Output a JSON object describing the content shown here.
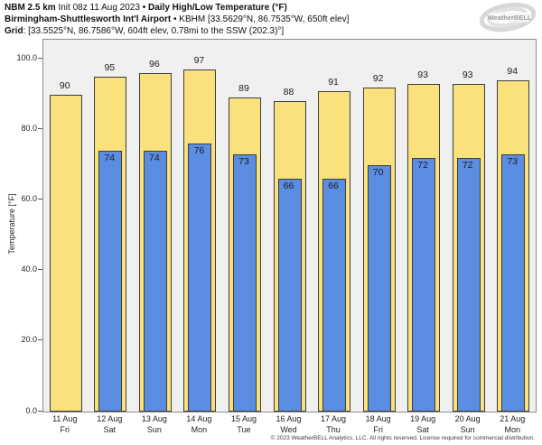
{
  "header": {
    "l1": [
      "NBM 2.5 km",
      " Init 08z 11 Aug 2023 ",
      "• Daily High/Low Temperature (°F)"
    ],
    "l2": [
      "Birmingham-Shuttlesworth Int'l Airport",
      " • KBHM [33.5629°N, 86.7535°W, 650ft elev]"
    ],
    "l3": [
      "Grid",
      ": [33.5525°N, 86.7586°W, 604ft elev, 0.78mi to the SSW (202.3)°]"
    ]
  },
  "logo": {
    "brand": "WeatherBELL"
  },
  "chart_data": {
    "type": "bar",
    "title": "NBM 2.5 km Init 08z 11 Aug 2023 • Daily High/Low Temperature (°F)",
    "subtitle": "Birmingham-Shuttlesworth Int'l Airport • KBHM",
    "categories": [
      {
        "date": "11 Aug",
        "day": "Fri"
      },
      {
        "date": "12 Aug",
        "day": "Sat"
      },
      {
        "date": "13 Aug",
        "day": "Sun"
      },
      {
        "date": "14 Aug",
        "day": "Mon"
      },
      {
        "date": "15 Aug",
        "day": "Tue"
      },
      {
        "date": "16 Aug",
        "day": "Wed"
      },
      {
        "date": "17 Aug",
        "day": "Thu"
      },
      {
        "date": "18 Aug",
        "day": "Fri"
      },
      {
        "date": "19 Aug",
        "day": "Sat"
      },
      {
        "date": "20 Aug",
        "day": "Sun"
      },
      {
        "date": "21 Aug",
        "day": "Mon"
      }
    ],
    "series": [
      {
        "name": "Daily High",
        "color": "#FAE17C",
        "values": [
          90,
          95,
          96,
          97,
          89,
          88,
          91,
          92,
          93,
          93,
          94
        ]
      },
      {
        "name": "Daily Low",
        "color": "#5B8DE2",
        "values": [
          null,
          74,
          74,
          76,
          73,
          66,
          66,
          70,
          72,
          72,
          73
        ]
      }
    ],
    "ylabel": "Temperature [°F]",
    "yticks": [
      {
        "v": 0,
        "label": "0.0"
      },
      {
        "v": 20,
        "label": "20.0"
      },
      {
        "v": 40,
        "label": "40.0"
      },
      {
        "v": 60,
        "label": "60.0"
      },
      {
        "v": 80,
        "label": "80.0"
      },
      {
        "v": 100,
        "label": "100.0"
      }
    ],
    "ylim": [
      0,
      105.5
    ],
    "grid": false,
    "legend": "none",
    "plot_bg": "#f0f0f0",
    "bar_border": "#3c3c3c"
  },
  "footer": {
    "copyright": "© 2023 WeatherBELL Analytics, LLC. All rights reserved. License required for commercial distribution."
  }
}
